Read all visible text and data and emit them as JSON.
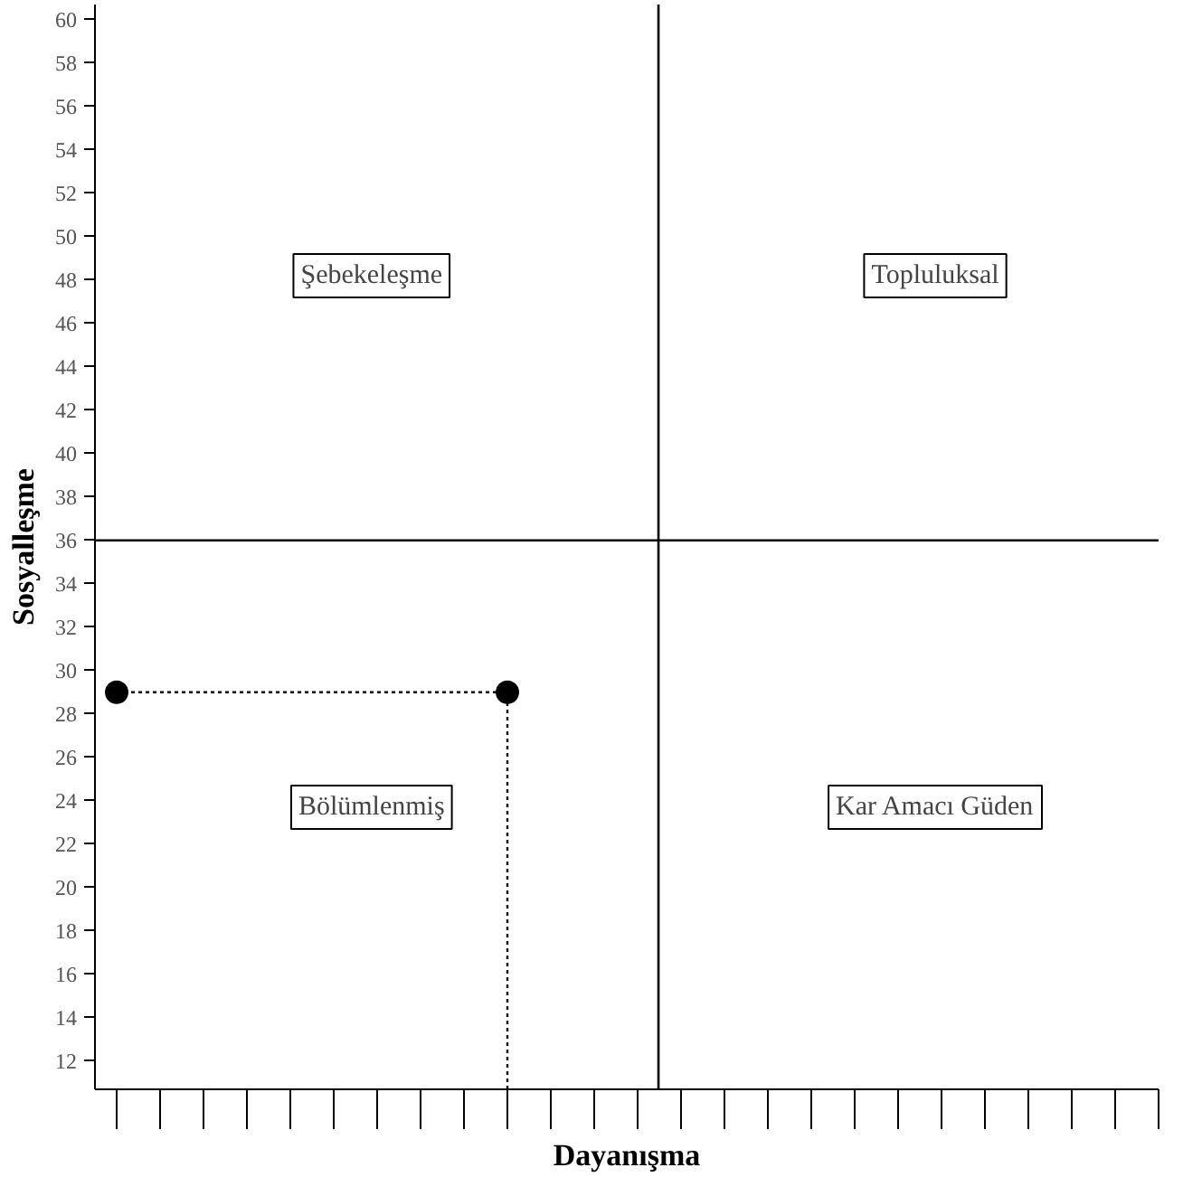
{
  "chart_data": {
    "type": "scatter",
    "xlabel": "Dayanışma",
    "ylabel": "Sosyalleşme",
    "categories": [
      null,
      null,
      null,
      null,
      null,
      null,
      null,
      null,
      null,
      null,
      null,
      null,
      null,
      null,
      null,
      null,
      null,
      null,
      null,
      null,
      null,
      null,
      null,
      null,
      null
    ],
    "ylim": [
      10.7,
      60.7
    ],
    "yticks": [
      12,
      14,
      16,
      18,
      20,
      22,
      24,
      26,
      28,
      30,
      32,
      34,
      36,
      38,
      40,
      42,
      44,
      46,
      48,
      50,
      52,
      54,
      56,
      58,
      60
    ],
    "tick_labels": "y",
    "grid": false,
    "series": [
      {
        "color": "#000000",
        "values": [
          29,
          null,
          null,
          null,
          null,
          null,
          null,
          null,
          null,
          29,
          null,
          null,
          null,
          null,
          null,
          null,
          null,
          null,
          null,
          null,
          null,
          null,
          null,
          null,
          null
        ],
        "marker": "circle"
      },
      {
        "type": "line",
        "color": "#000000",
        "values": [
          29,
          29,
          29,
          29,
          29,
          29,
          29,
          29,
          29,
          29,
          null,
          null,
          null,
          null,
          null,
          null,
          null,
          null,
          null,
          null,
          null,
          null,
          null,
          null,
          null
        ],
        "marker": "none",
        "line_style": "dotted"
      }
    ],
    "ref_lines": [
      {
        "axis": "y",
        "value": 36,
        "color": "#000000",
        "line_style": "solid"
      }
    ],
    "annotations": [
      "Şebekeleşme",
      "Topluluksal",
      "Bölümlenmiş",
      "Kar Amacı Güden"
    ]
  }
}
